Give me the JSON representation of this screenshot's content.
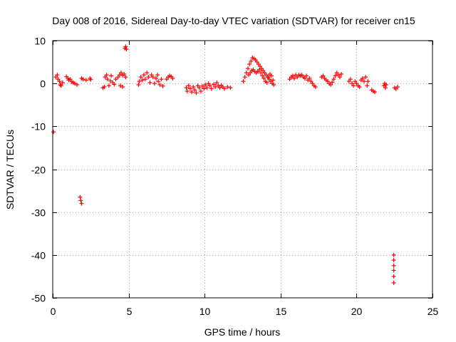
{
  "chart_data": {
    "type": "scatter",
    "title": "Day 008 of 2016, Sidereal Day-to-day VTEC variation (SDTVAR) for receiver cn15",
    "xlabel": "GPS time / hours",
    "ylabel": "SDTVAR / TECUs",
    "xlim": [
      0,
      25
    ],
    "ylim": [
      -50,
      10
    ],
    "xticks": [
      0,
      5,
      10,
      15,
      20,
      25
    ],
    "yticks": [
      -50,
      -40,
      -30,
      -20,
      -10,
      0,
      10
    ],
    "grid": true,
    "marker": "+",
    "color": "#ff0000",
    "series": [
      {
        "name": "SDTVAR",
        "points": [
          [
            0.05,
            -11.3
          ],
          [
            0.2,
            1.5
          ],
          [
            0.3,
            2.0
          ],
          [
            0.35,
            1.0
          ],
          [
            0.45,
            0.5
          ],
          [
            0.5,
            -0.3
          ],
          [
            0.55,
            -0.5
          ],
          [
            0.65,
            0.2
          ],
          [
            0.9,
            1.6
          ],
          [
            1.0,
            1.2
          ],
          [
            1.05,
            0.8
          ],
          [
            1.15,
            1.0
          ],
          [
            1.25,
            0.4
          ],
          [
            1.35,
            0.2
          ],
          [
            1.45,
            0.0
          ],
          [
            1.6,
            -0.3
          ],
          [
            1.9,
            1.2
          ],
          [
            2.0,
            1.0
          ],
          [
            2.2,
            0.8
          ],
          [
            2.45,
            1.2
          ],
          [
            2.5,
            0.9
          ],
          [
            1.8,
            -26.5
          ],
          [
            1.85,
            -27.3
          ],
          [
            1.9,
            -28.0
          ],
          [
            3.3,
            -1.0
          ],
          [
            3.4,
            -0.8
          ],
          [
            3.45,
            1.5
          ],
          [
            3.55,
            2.0
          ],
          [
            3.6,
            1.0
          ],
          [
            3.7,
            -0.5
          ],
          [
            3.8,
            0.6
          ],
          [
            3.85,
            1.8
          ],
          [
            3.95,
            0.2
          ],
          [
            4.05,
            -0.2
          ],
          [
            4.15,
            1.0
          ],
          [
            4.3,
            1.5
          ],
          [
            4.4,
            2.0
          ],
          [
            4.5,
            2.5
          ],
          [
            4.6,
            1.9
          ],
          [
            4.7,
            2.2
          ],
          [
            4.8,
            1.5
          ],
          [
            4.45,
            -0.5
          ],
          [
            4.6,
            -0.8
          ],
          [
            4.75,
            8.2
          ],
          [
            4.8,
            8.6
          ],
          [
            4.85,
            8.0
          ],
          [
            5.65,
            -0.3
          ],
          [
            5.7,
            0.5
          ],
          [
            5.8,
            1.5
          ],
          [
            5.9,
            0.8
          ],
          [
            6.0,
            2.0
          ],
          [
            6.1,
            1.0
          ],
          [
            6.2,
            2.5
          ],
          [
            6.3,
            1.5
          ],
          [
            6.4,
            0.2
          ],
          [
            6.5,
            2.0
          ],
          [
            6.6,
            1.5
          ],
          [
            6.7,
            0.0
          ],
          [
            6.8,
            1.2
          ],
          [
            6.9,
            2.0
          ],
          [
            6.95,
            0.5
          ],
          [
            7.05,
            -0.3
          ],
          [
            7.15,
            1.0
          ],
          [
            7.25,
            -0.6
          ],
          [
            7.5,
            1.0
          ],
          [
            7.6,
            1.5
          ],
          [
            7.7,
            1.8
          ],
          [
            7.8,
            1.6
          ],
          [
            7.9,
            1.2
          ],
          [
            8.8,
            -1.0
          ],
          [
            8.85,
            -1.8
          ],
          [
            8.95,
            -0.5
          ],
          [
            9.05,
            -1.2
          ],
          [
            9.15,
            -2.0
          ],
          [
            9.25,
            -0.8
          ],
          [
            9.35,
            -1.5
          ],
          [
            9.45,
            -2.2
          ],
          [
            9.55,
            -0.5
          ],
          [
            9.65,
            -1.0
          ],
          [
            9.75,
            -1.8
          ],
          [
            9.85,
            -0.6
          ],
          [
            9.95,
            -1.2
          ],
          [
            10.05,
            -0.3
          ],
          [
            10.15,
            -1.0
          ],
          [
            10.25,
            0.0
          ],
          [
            10.35,
            -0.5
          ],
          [
            10.45,
            -1.2
          ],
          [
            10.6,
            -0.2
          ],
          [
            10.7,
            -0.8
          ],
          [
            10.8,
            0.2
          ],
          [
            10.9,
            -0.5
          ],
          [
            11.0,
            -1.0
          ],
          [
            11.1,
            -0.4
          ],
          [
            11.2,
            -0.8
          ],
          [
            11.3,
            -1.2
          ],
          [
            11.5,
            -0.8
          ],
          [
            11.7,
            -1.0
          ],
          [
            12.55,
            0.5
          ],
          [
            12.65,
            1.5
          ],
          [
            12.75,
            2.5
          ],
          [
            12.85,
            3.5
          ],
          [
            12.95,
            4.5
          ],
          [
            13.05,
            5.2
          ],
          [
            13.15,
            6.0
          ],
          [
            13.25,
            5.8
          ],
          [
            13.35,
            5.5
          ],
          [
            13.45,
            5.0
          ],
          [
            13.55,
            4.5
          ],
          [
            13.65,
            4.0
          ],
          [
            13.75,
            3.5
          ],
          [
            13.85,
            3.0
          ],
          [
            13.95,
            2.5
          ],
          [
            14.05,
            2.0
          ],
          [
            14.15,
            1.5
          ],
          [
            14.25,
            1.0
          ],
          [
            14.35,
            0.5
          ],
          [
            14.45,
            0.0
          ],
          [
            14.55,
            -0.3
          ],
          [
            12.9,
            2.0
          ],
          [
            13.0,
            2.5
          ],
          [
            13.1,
            3.0
          ],
          [
            13.2,
            3.2
          ],
          [
            13.3,
            2.8
          ],
          [
            13.4,
            2.5
          ],
          [
            13.5,
            2.8
          ],
          [
            13.6,
            3.2
          ],
          [
            13.7,
            2.5
          ],
          [
            13.8,
            1.8
          ],
          [
            13.9,
            1.2
          ],
          [
            14.0,
            0.5
          ],
          [
            14.1,
            0.2
          ],
          [
            14.2,
            1.5
          ],
          [
            14.3,
            2.2
          ],
          [
            14.4,
            1.8
          ],
          [
            14.5,
            0.8
          ],
          [
            15.6,
            1.0
          ],
          [
            15.7,
            1.5
          ],
          [
            15.8,
            1.8
          ],
          [
            15.9,
            1.2
          ],
          [
            16.0,
            2.0
          ],
          [
            16.1,
            1.5
          ],
          [
            16.2,
            2.0
          ],
          [
            16.3,
            1.8
          ],
          [
            16.4,
            2.0
          ],
          [
            16.5,
            1.5
          ],
          [
            16.6,
            1.2
          ],
          [
            16.7,
            1.8
          ],
          [
            16.8,
            0.8
          ],
          [
            16.9,
            1.2
          ],
          [
            17.0,
            0.5
          ],
          [
            17.1,
            0.0
          ],
          [
            17.2,
            -0.5
          ],
          [
            17.3,
            -0.8
          ],
          [
            17.7,
            1.5
          ],
          [
            17.8,
            1.8
          ],
          [
            17.9,
            1.2
          ],
          [
            18.0,
            0.8
          ],
          [
            18.1,
            0.5
          ],
          [
            18.2,
            0.0
          ],
          [
            18.3,
            -0.3
          ],
          [
            18.4,
            0.3
          ],
          [
            18.5,
            1.0
          ],
          [
            18.6,
            1.8
          ],
          [
            18.7,
            2.5
          ],
          [
            18.8,
            2.0
          ],
          [
            18.9,
            1.5
          ],
          [
            19.0,
            2.2
          ],
          [
            19.5,
            0.5
          ],
          [
            19.6,
            1.0
          ],
          [
            19.7,
            0.0
          ],
          [
            19.8,
            -0.5
          ],
          [
            19.9,
            0.5
          ],
          [
            20.0,
            0.0
          ],
          [
            20.1,
            -0.5
          ],
          [
            20.2,
            -0.8
          ],
          [
            20.3,
            0.8
          ],
          [
            20.4,
            1.2
          ],
          [
            20.5,
            0.5
          ],
          [
            20.6,
            1.5
          ],
          [
            20.7,
            -0.5
          ],
          [
            20.75,
            0.5
          ],
          [
            21.0,
            -1.5
          ],
          [
            21.1,
            -1.8
          ],
          [
            21.2,
            -2.0
          ],
          [
            21.8,
            -0.5
          ],
          [
            21.85,
            0.0
          ],
          [
            21.9,
            -1.0
          ],
          [
            21.95,
            -0.3
          ],
          [
            22.5,
            -1.0
          ],
          [
            22.6,
            -1.3
          ],
          [
            22.7,
            -0.8
          ],
          [
            22.45,
            -40.0
          ],
          [
            22.45,
            -41.2
          ],
          [
            22.45,
            -42.5
          ],
          [
            22.45,
            -43.6
          ],
          [
            22.45,
            -45.0
          ],
          [
            22.45,
            -46.5
          ]
        ]
      }
    ]
  }
}
